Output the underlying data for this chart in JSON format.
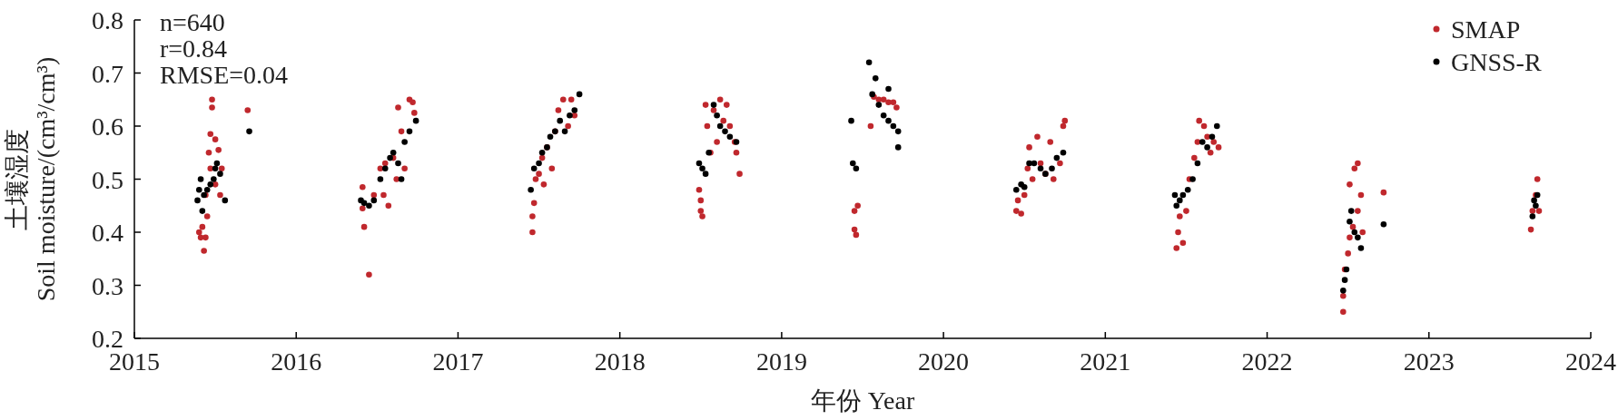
{
  "chart_data": {
    "type": "scatter",
    "xlabel": "年份 Year",
    "ylabel": "土壤湿度\nSoil moisture/(cm³/cm³)",
    "annotations": [
      "n=640",
      "r=0.84",
      "RMSE=0.04"
    ],
    "xlim": [
      2015,
      2024
    ],
    "ylim": [
      0.2,
      0.8
    ],
    "xticks": [
      2015,
      2016,
      2017,
      2018,
      2019,
      2020,
      2021,
      2022,
      2023,
      2024
    ],
    "yticks": [
      0.2,
      0.3,
      0.4,
      0.5,
      0.6,
      0.7,
      0.8
    ],
    "marker": "circle",
    "grid": false,
    "legend": "top right",
    "series": [
      {
        "name": "SMAP",
        "color": "#c0282d",
        "x": [
          2015.4,
          2015.41,
          2015.42,
          2015.43,
          2015.44,
          2015.45,
          2015.44,
          2015.46,
          2015.47,
          2015.47,
          2015.48,
          2015.48,
          2015.5,
          2015.5,
          2015.52,
          2015.54,
          2015.53,
          2015.7,
          2016.41,
          2016.41,
          2016.42,
          2016.45,
          2016.48,
          2016.52,
          2016.54,
          2016.55,
          2016.57,
          2016.6,
          2016.62,
          2016.63,
          2016.65,
          2016.67,
          2016.7,
          2016.72,
          2016.73,
          2017.46,
          2017.46,
          2017.47,
          2017.48,
          2017.5,
          2017.52,
          2017.53,
          2017.55,
          2017.58,
          2017.6,
          2017.62,
          2017.65,
          2017.68,
          2017.7,
          2017.72,
          2018.49,
          2018.5,
          2018.5,
          2018.51,
          2018.53,
          2018.54,
          2018.56,
          2018.58,
          2018.6,
          2018.62,
          2018.64,
          2018.66,
          2018.68,
          2018.71,
          2018.72,
          2018.74,
          2019.45,
          2019.45,
          2019.46,
          2019.47,
          2019.55,
          2019.57,
          2019.6,
          2019.63,
          2019.66,
          2019.69,
          2019.71,
          2020.45,
          2020.46,
          2020.48,
          2020.5,
          2020.52,
          2020.53,
          2020.55,
          2020.58,
          2020.6,
          2020.63,
          2020.66,
          2020.68,
          2020.72,
          2020.74,
          2020.75,
          2021.44,
          2021.45,
          2021.46,
          2021.48,
          2021.5,
          2021.52,
          2021.55,
          2021.57,
          2021.58,
          2021.61,
          2021.63,
          2021.65,
          2021.67,
          2021.7,
          2022.47,
          2022.47,
          2022.48,
          2022.5,
          2022.51,
          2022.51,
          2022.53,
          2022.54,
          2022.56,
          2022.56,
          2022.58,
          2022.59,
          2022.72,
          2023.63,
          2023.64,
          2023.66,
          2023.67,
          2023.68
        ],
        "values": [
          0.4,
          0.39,
          0.41,
          0.365,
          0.39,
          0.43,
          0.47,
          0.55,
          0.52,
          0.585,
          0.65,
          0.635,
          0.575,
          0.49,
          0.555,
          0.52,
          0.47,
          0.63,
          0.485,
          0.445,
          0.41,
          0.32,
          0.47,
          0.52,
          0.47,
          0.53,
          0.45,
          0.54,
          0.5,
          0.635,
          0.59,
          0.52,
          0.65,
          0.645,
          0.625,
          0.4,
          0.43,
          0.455,
          0.5,
          0.51,
          0.54,
          0.49,
          0.56,
          0.52,
          0.59,
          0.63,
          0.65,
          0.6,
          0.65,
          0.62,
          0.48,
          0.46,
          0.44,
          0.43,
          0.64,
          0.6,
          0.55,
          0.63,
          0.57,
          0.65,
          0.61,
          0.64,
          0.6,
          0.57,
          0.55,
          0.51,
          0.44,
          0.405,
          0.395,
          0.45,
          0.6,
          0.655,
          0.65,
          0.65,
          0.645,
          0.645,
          0.635,
          0.44,
          0.46,
          0.435,
          0.47,
          0.52,
          0.56,
          0.5,
          0.58,
          0.53,
          0.51,
          0.57,
          0.5,
          0.53,
          0.6,
          0.61,
          0.37,
          0.4,
          0.43,
          0.38,
          0.44,
          0.5,
          0.54,
          0.57,
          0.61,
          0.6,
          0.58,
          0.55,
          0.57,
          0.56,
          0.25,
          0.28,
          0.33,
          0.36,
          0.39,
          0.49,
          0.41,
          0.52,
          0.53,
          0.44,
          0.47,
          0.4,
          0.475,
          0.405,
          0.44,
          0.47,
          0.5,
          0.44
        ]
      },
      {
        "name": "GNSS-R",
        "color": "#000000",
        "x": [
          2015.39,
          2015.4,
          2015.41,
          2015.42,
          2015.43,
          2015.45,
          2015.47,
          2015.49,
          2015.5,
          2015.51,
          2015.53,
          2015.56,
          2015.71,
          2016.4,
          2016.42,
          2016.45,
          2016.48,
          2016.52,
          2016.55,
          2016.58,
          2016.6,
          2016.63,
          2016.65,
          2016.67,
          2016.7,
          2016.74,
          2017.45,
          2017.47,
          2017.5,
          2017.52,
          2017.55,
          2017.57,
          2017.6,
          2017.63,
          2017.66,
          2017.69,
          2017.72,
          2017.75,
          2018.49,
          2018.51,
          2018.53,
          2018.55,
          2018.58,
          2018.6,
          2018.62,
          2018.65,
          2018.68,
          2018.72,
          2019.43,
          2019.44,
          2019.46,
          2019.54,
          2019.56,
          2019.58,
          2019.6,
          2019.63,
          2019.66,
          2019.69,
          2019.72,
          2019.72,
          2019.66,
          2020.45,
          2020.48,
          2020.5,
          2020.53,
          2020.56,
          2020.6,
          2020.63,
          2020.67,
          2020.7,
          2020.74,
          2021.43,
          2021.44,
          2021.46,
          2021.48,
          2021.51,
          2021.54,
          2021.57,
          2021.6,
          2021.63,
          2021.66,
          2021.69,
          2022.47,
          2022.48,
          2022.49,
          2022.51,
          2022.52,
          2022.54,
          2022.56,
          2022.58,
          2022.72,
          2023.64,
          2023.65,
          2023.66,
          2023.67
        ],
        "values": [
          0.46,
          0.48,
          0.5,
          0.44,
          0.47,
          0.48,
          0.49,
          0.5,
          0.52,
          0.53,
          0.51,
          0.46,
          0.59,
          0.46,
          0.455,
          0.45,
          0.46,
          0.5,
          0.52,
          0.54,
          0.55,
          0.53,
          0.5,
          0.57,
          0.59,
          0.61,
          0.48,
          0.52,
          0.53,
          0.55,
          0.56,
          0.58,
          0.59,
          0.61,
          0.59,
          0.62,
          0.63,
          0.66,
          0.53,
          0.52,
          0.51,
          0.55,
          0.64,
          0.62,
          0.6,
          0.59,
          0.58,
          0.57,
          0.61,
          0.53,
          0.52,
          0.72,
          0.66,
          0.69,
          0.64,
          0.62,
          0.61,
          0.6,
          0.59,
          0.56,
          0.67,
          0.48,
          0.49,
          0.485,
          0.53,
          0.53,
          0.52,
          0.51,
          0.52,
          0.54,
          0.55,
          0.47,
          0.45,
          0.46,
          0.47,
          0.48,
          0.5,
          0.53,
          0.57,
          0.56,
          0.58,
          0.6,
          0.29,
          0.31,
          0.33,
          0.42,
          0.44,
          0.4,
          0.39,
          0.37,
          0.415,
          0.43,
          0.46,
          0.45,
          0.47
        ]
      }
    ]
  }
}
